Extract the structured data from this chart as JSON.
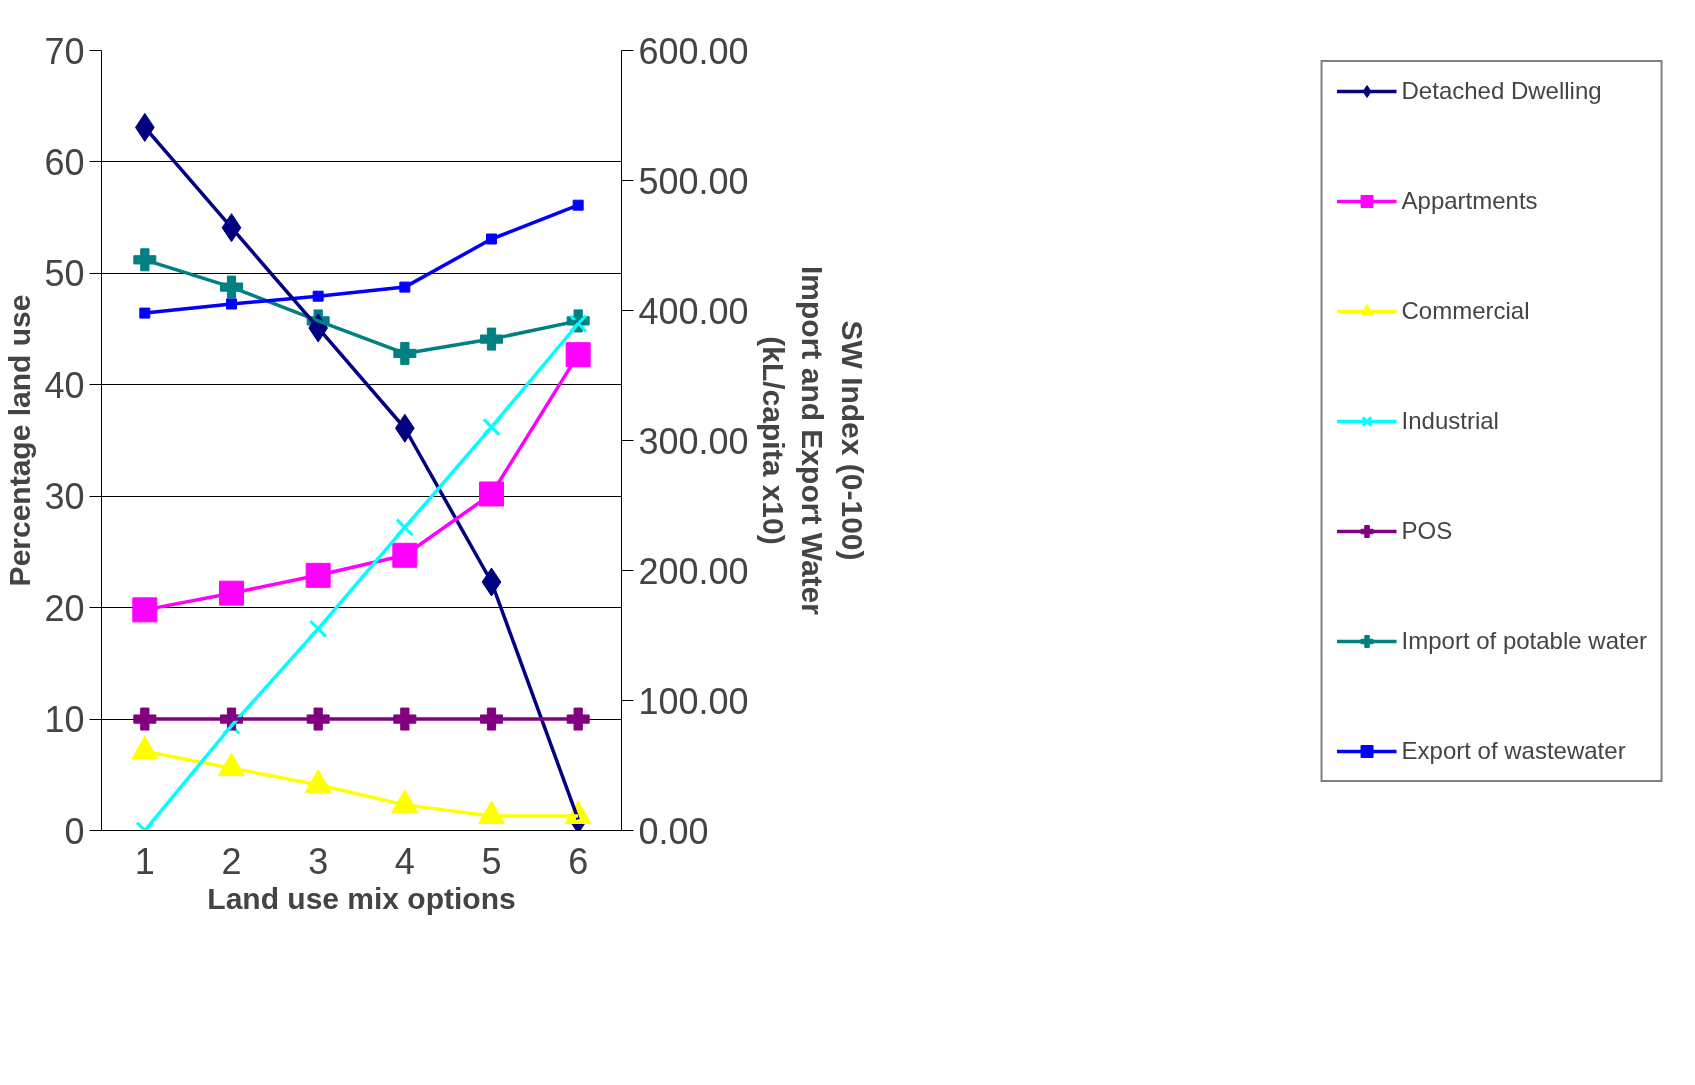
{
  "chart_data": {
    "type": "line",
    "xlabel": "Land use mix options",
    "ylabel": "Percentage land use",
    "y2label": "SW Index (0-100)\nImport and Export Water\n(kL/capita x10)",
    "categories": [
      "1",
      "2",
      "3",
      "4",
      "5",
      "6"
    ],
    "ylim": [
      0,
      70
    ],
    "yticks": [
      0,
      10,
      20,
      30,
      40,
      50,
      60,
      70
    ],
    "y2lim": [
      0,
      600
    ],
    "y2ticks": [
      {
        "value": 0,
        "label": "0.00"
      },
      {
        "value": 100,
        "label": "100.00"
      },
      {
        "value": 200,
        "label": "200.00"
      },
      {
        "value": 300,
        "label": "300.00"
      },
      {
        "value": 400,
        "label": "400.00"
      },
      {
        "value": 500,
        "label": "500.00"
      },
      {
        "value": 600,
        "label": "600.00"
      }
    ],
    "grid": "y",
    "legend": "right",
    "series": [
      {
        "name": "Detached Dwelling",
        "color": "#000080",
        "marker": "diamond",
        "values": [
          63.1,
          54.1,
          45.1,
          36.1,
          22.3,
          1.0
        ]
      },
      {
        "name": "Appartments",
        "color": "#ff00ff",
        "marker": "square",
        "values": [
          19.8,
          21.3,
          22.9,
          24.7,
          30.2,
          42.7
        ]
      },
      {
        "name": "Commercial",
        "color": "#ffff00",
        "marker": "triangle",
        "values": [
          7.1,
          5.6,
          4.1,
          2.3,
          1.3,
          1.3
        ]
      },
      {
        "name": "Industrial",
        "color": "#00ffff",
        "marker": "x",
        "values": [
          0,
          9.4,
          18.1,
          27.2,
          36.2,
          45.5
        ]
      },
      {
        "name": "POS",
        "color": "#800080",
        "marker": "cross",
        "values": [
          10,
          10,
          10,
          10,
          10,
          10
        ]
      },
      {
        "name": "Import of potable water",
        "color": "#008080",
        "marker": "cross",
        "axis": "y2",
        "values": [
          439,
          418,
          392,
          367,
          378,
          392
        ]
      },
      {
        "name": "Export of wastewater",
        "color": "#0000ff",
        "marker": "square",
        "axis": "y2",
        "values": [
          398,
          405,
          411,
          418,
          455,
          481
        ]
      }
    ]
  }
}
